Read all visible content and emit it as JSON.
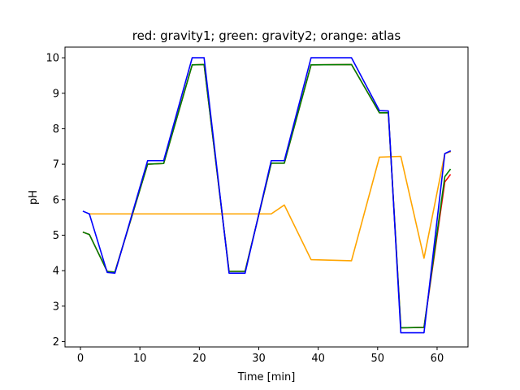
{
  "chart_data": {
    "type": "line",
    "title": "red: gravity1; green: gravity2; orange: atlas",
    "xlabel": "Time [min]",
    "ylabel": "pH",
    "xlim": [
      -2.6,
      65.2
    ],
    "ylim": [
      1.85,
      10.3
    ],
    "xticks": [
      0,
      10,
      20,
      30,
      40,
      50,
      60
    ],
    "yticks": [
      2,
      3,
      4,
      5,
      6,
      7,
      8,
      9,
      10
    ],
    "grid": false,
    "series": [
      {
        "color": "#ff0000",
        "values": [
          [
            0.5,
            5.08
          ],
          [
            1.5,
            5.02
          ],
          [
            4.5,
            3.98
          ],
          [
            5.8,
            3.96
          ],
          [
            11.3,
            7.0
          ],
          [
            14.0,
            7.02
          ],
          [
            18.8,
            9.8
          ],
          [
            20.8,
            9.81
          ],
          [
            25.0,
            3.98
          ],
          [
            27.7,
            3.98
          ],
          [
            32.1,
            7.03
          ],
          [
            34.3,
            7.03
          ],
          [
            38.8,
            9.8
          ],
          [
            45.6,
            9.81
          ],
          [
            50.3,
            8.45
          ],
          [
            51.8,
            8.45
          ],
          [
            53.9,
            2.39
          ],
          [
            57.8,
            2.4
          ],
          [
            61.3,
            6.5
          ],
          [
            62.2,
            6.7
          ]
        ]
      },
      {
        "color": "#008000",
        "values": [
          [
            0.5,
            5.08
          ],
          [
            1.5,
            5.02
          ],
          [
            4.5,
            3.98
          ],
          [
            5.8,
            3.96
          ],
          [
            11.3,
            7.0
          ],
          [
            14.0,
            7.02
          ],
          [
            18.8,
            9.8
          ],
          [
            20.8,
            9.81
          ],
          [
            25.0,
            3.98
          ],
          [
            27.7,
            3.98
          ],
          [
            32.1,
            7.03
          ],
          [
            34.3,
            7.03
          ],
          [
            38.8,
            9.8
          ],
          [
            45.6,
            9.81
          ],
          [
            50.3,
            8.45
          ],
          [
            51.8,
            8.45
          ],
          [
            53.9,
            2.39
          ],
          [
            57.8,
            2.4
          ],
          [
            61.3,
            6.65
          ],
          [
            62.2,
            6.85
          ]
        ]
      },
      {
        "color": "#ffa500",
        "values": [
          [
            1.5,
            5.6
          ],
          [
            32.1,
            5.6
          ],
          [
            34.3,
            5.85
          ],
          [
            38.8,
            4.31
          ],
          [
            45.6,
            4.28
          ],
          [
            50.3,
            7.2
          ],
          [
            53.9,
            7.22
          ],
          [
            57.8,
            4.35
          ],
          [
            61.3,
            7.3
          ],
          [
            62.2,
            7.35
          ]
        ]
      },
      {
        "color": "#0000ff",
        "values": [
          [
            0.5,
            5.67
          ],
          [
            1.5,
            5.6
          ],
          [
            4.5,
            3.95
          ],
          [
            5.8,
            3.93
          ],
          [
            11.3,
            7.1
          ],
          [
            14.0,
            7.1
          ],
          [
            18.8,
            10.0
          ],
          [
            20.8,
            10.0
          ],
          [
            25.0,
            3.93
          ],
          [
            27.7,
            3.93
          ],
          [
            32.1,
            7.1
          ],
          [
            34.3,
            7.1
          ],
          [
            38.8,
            10.0
          ],
          [
            45.6,
            10.0
          ],
          [
            50.3,
            8.51
          ],
          [
            51.8,
            8.5
          ],
          [
            53.9,
            2.25
          ],
          [
            57.8,
            2.25
          ],
          [
            61.3,
            7.3
          ],
          [
            62.2,
            7.37
          ]
        ]
      }
    ]
  }
}
